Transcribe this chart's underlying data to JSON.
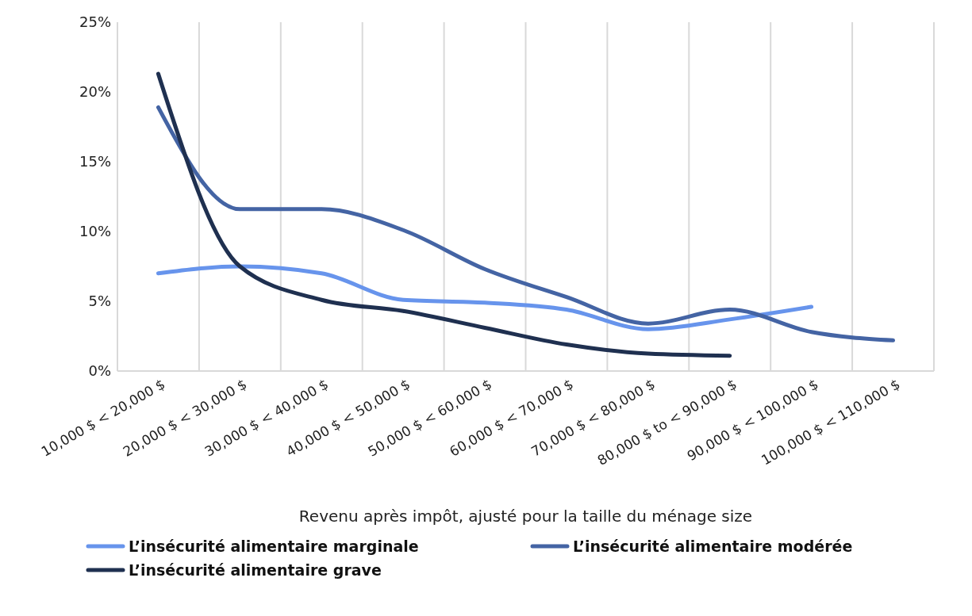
{
  "chart_data": {
    "type": "line",
    "xlabel": "Revenu après impôt, ajusté pour la taille du ménage size",
    "categories": [
      "10,000 $ < 20,000 $",
      "20,000 $ < 30,000 $",
      "30,000 $ < 40,000 $",
      "40,000 $ < 50,000 $",
      "50,000 $ < 60,000 $",
      "60,000 $ < 70,000 $",
      "70,000 $ < 80,000 $",
      "80,000 $ to < 90,000 $",
      "90,000 $ < 100,000 $",
      "100,000 $  < 110,000 $"
    ],
    "series": [
      {
        "name": "L’insécurité alimentaire marginale",
        "color": "#6794ec",
        "values": [
          7.0,
          7.5,
          7.0,
          5.1,
          4.9,
          4.4,
          3.0,
          3.7,
          4.6,
          null
        ]
      },
      {
        "name": "L’insécurité alimentaire modérée",
        "color": "#4464a4",
        "values": [
          18.9,
          11.6,
          11.6,
          10.1,
          7.3,
          5.3,
          3.4,
          4.4,
          2.8,
          2.2
        ]
      },
      {
        "name": "L’insécurité alimentaire grave",
        "color": "#1f3050",
        "values": [
          21.3,
          7.5,
          5.1,
          4.3,
          3.1,
          1.9,
          1.25,
          1.1,
          null,
          null
        ]
      }
    ],
    "ylim": [
      0,
      25
    ],
    "yticks": [
      {
        "value": 0,
        "label": "0%"
      },
      {
        "value": 5,
        "label": "5%"
      },
      {
        "value": 10,
        "label": "10%"
      },
      {
        "value": 15,
        "label": "15%"
      },
      {
        "value": 20,
        "label": "20%"
      },
      {
        "value": 25,
        "label": "25%"
      }
    ],
    "grid": "x",
    "legend": "bottom",
    "marker": "none",
    "line_style": "solid"
  }
}
